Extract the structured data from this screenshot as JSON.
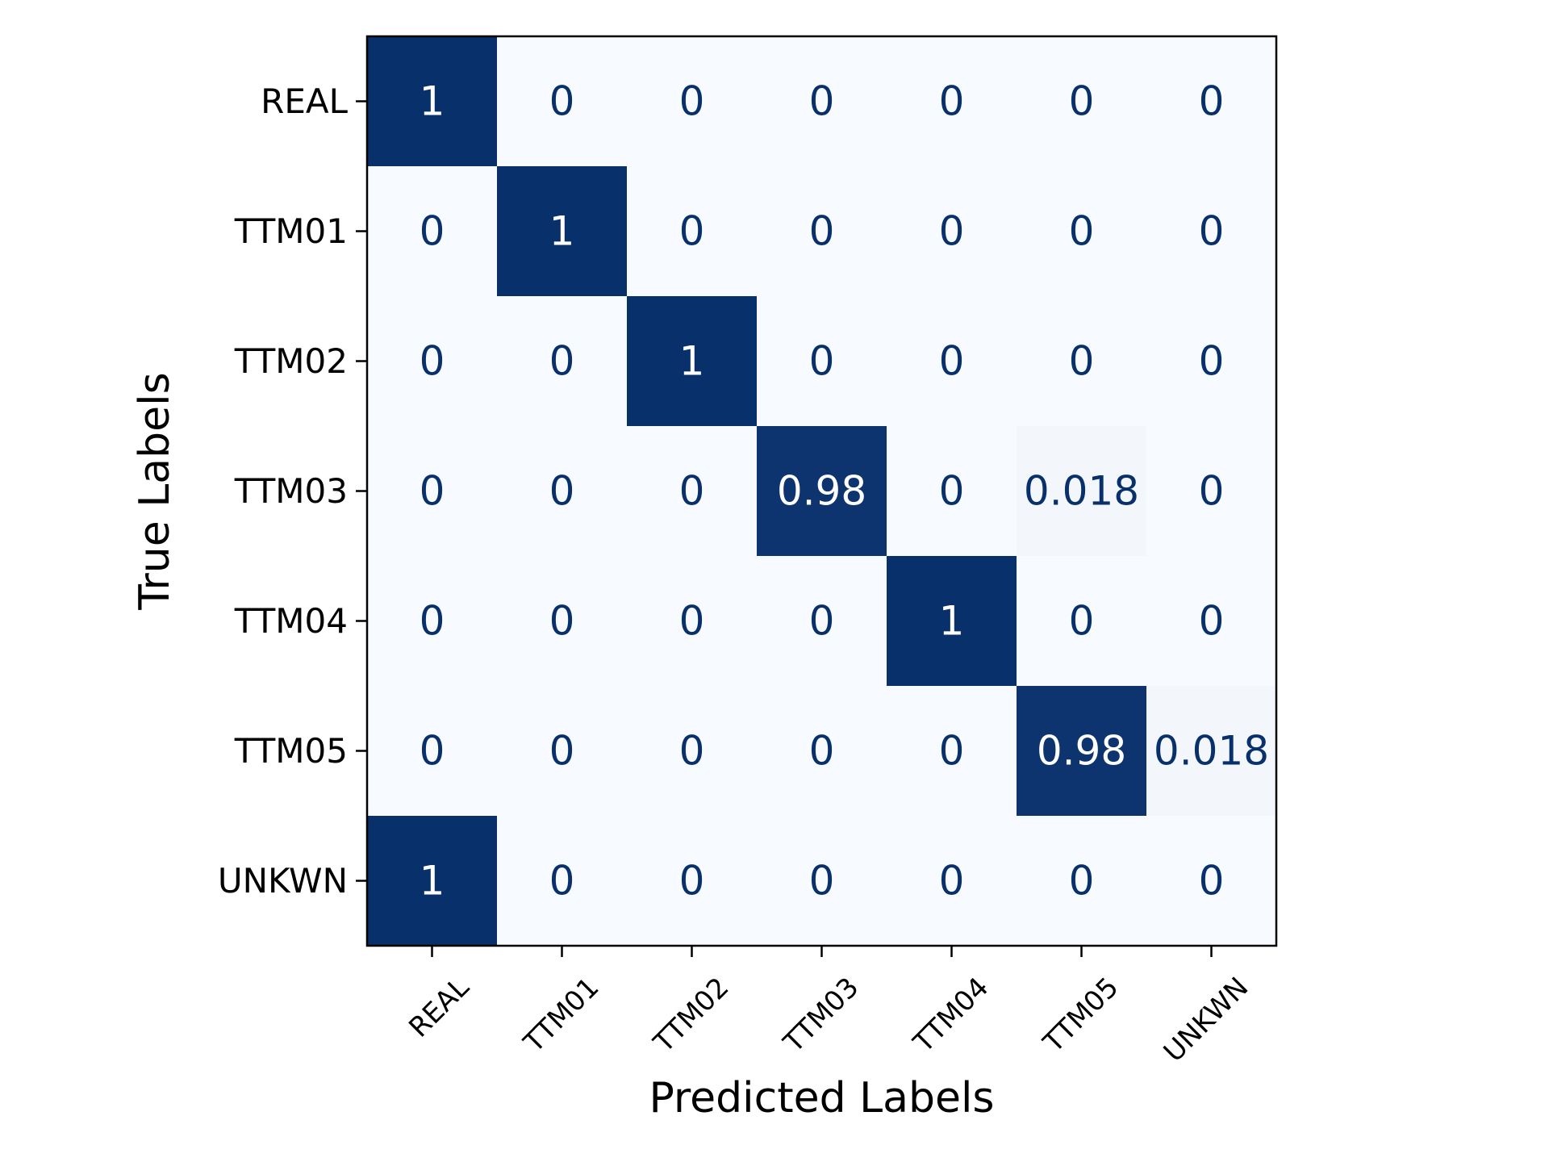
{
  "chart_data": {
    "type": "heatmap",
    "xlabel": "Predicted Labels",
    "ylabel": "True Labels",
    "x_categories": [
      "REAL",
      "TTM01",
      "TTM02",
      "TTM03",
      "TTM04",
      "TTM05",
      "UNKWN"
    ],
    "y_categories": [
      "REAL",
      "TTM01",
      "TTM02",
      "TTM03",
      "TTM04",
      "TTM05",
      "UNKWN"
    ],
    "values": [
      [
        1,
        0,
        0,
        0,
        0,
        0,
        0
      ],
      [
        0,
        1,
        0,
        0,
        0,
        0,
        0
      ],
      [
        0,
        0,
        1,
        0,
        0,
        0,
        0
      ],
      [
        0,
        0,
        0,
        0.98,
        0,
        0.018,
        0
      ],
      [
        0,
        0,
        0,
        0,
        1,
        0,
        0
      ],
      [
        0,
        0,
        0,
        0,
        0,
        0.98,
        0.018
      ],
      [
        1,
        0,
        0,
        0,
        0,
        0,
        0
      ]
    ],
    "cell_labels": [
      [
        "1",
        "0",
        "0",
        "0",
        "0",
        "0",
        "0"
      ],
      [
        "0",
        "1",
        "0",
        "0",
        "0",
        "0",
        "0"
      ],
      [
        "0",
        "0",
        "1",
        "0",
        "0",
        "0",
        "0"
      ],
      [
        "0",
        "0",
        "0",
        "0.98",
        "0",
        "0.018",
        "0"
      ],
      [
        "0",
        "0",
        "0",
        "0",
        "1",
        "0",
        "0"
      ],
      [
        "0",
        "0",
        "0",
        "0",
        "0",
        "0.98",
        "0.018"
      ],
      [
        "1",
        "0",
        "0",
        "0",
        "0",
        "0",
        "0"
      ]
    ],
    "value_range": [
      0,
      1
    ],
    "colormap": "Blues",
    "colors": {
      "low": "#f7fbff",
      "high": "#08306b",
      "text_on_dark": "#ffffff",
      "text_on_light": "#08306b"
    },
    "colorbar": false,
    "grid": false
  }
}
